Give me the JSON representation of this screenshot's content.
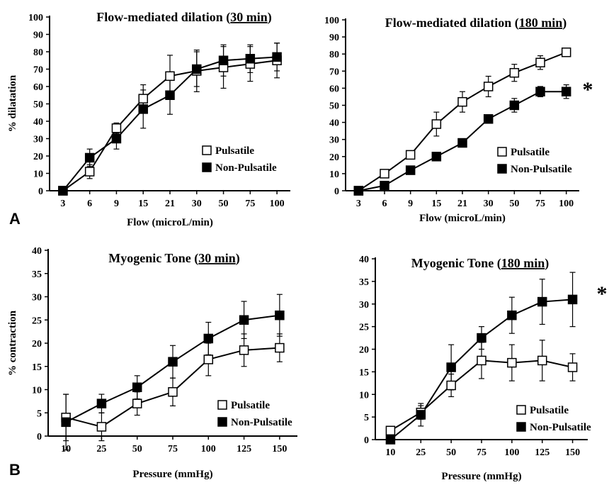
{
  "figure": {
    "panel_labels": [
      "A",
      "B"
    ]
  },
  "chart_data": [
    {
      "type": "line",
      "title_prefix": "Flow-mediated dilation ",
      "title_emph": "30 min",
      "xlabel": "Flow (microL/min)",
      "ylabel": "% dilatation",
      "categories": [
        "3",
        "6",
        "9",
        "15",
        "21",
        "30",
        "50",
        "75",
        "100"
      ],
      "ylim": [
        0,
        100
      ],
      "yticks": [
        0,
        10,
        20,
        30,
        40,
        50,
        60,
        70,
        80,
        90,
        100
      ],
      "legend_position": "lower-right",
      "asterisk": "",
      "series": [
        {
          "name": "Pulsatile",
          "marker": "open-square",
          "values": [
            0,
            11,
            36,
            53,
            66,
            69,
            71,
            73,
            75
          ],
          "errors": [
            0,
            4,
            3,
            8,
            12,
            12,
            12,
            10,
            10
          ]
        },
        {
          "name": "Non-Pulsatile",
          "marker": "filled-square",
          "values": [
            0,
            19,
            30,
            47,
            55,
            70,
            75,
            76,
            77
          ],
          "errors": [
            0,
            5,
            6,
            11,
            11,
            10,
            9,
            8,
            8
          ]
        }
      ]
    },
    {
      "type": "line",
      "title_prefix": "Flow-mediated dilation ",
      "title_emph": "180 min",
      "xlabel": "Flow (microL/min)",
      "ylabel": "",
      "categories": [
        "3",
        "6",
        "9",
        "15",
        "21",
        "30",
        "50",
        "75",
        "100"
      ],
      "ylim": [
        0,
        100
      ],
      "yticks": [
        0,
        10,
        20,
        30,
        40,
        50,
        60,
        70,
        80,
        90,
        100
      ],
      "legend_position": "lower-right",
      "asterisk": "*",
      "series": [
        {
          "name": "Pulsatile",
          "marker": "open-square",
          "values": [
            0,
            10,
            21,
            39,
            52,
            61,
            69,
            75,
            81
          ],
          "errors": [
            0,
            1,
            2,
            7,
            6,
            6,
            5,
            4,
            2
          ]
        },
        {
          "name": "Non-Pulsatile",
          "marker": "filled-square",
          "values": [
            0,
            3,
            12,
            20,
            28,
            42,
            50,
            58,
            58
          ],
          "errors": [
            0,
            1,
            1,
            1,
            1,
            2,
            4,
            3,
            4
          ]
        }
      ]
    },
    {
      "type": "line",
      "title_prefix": "Myogenic Tone ",
      "title_emph": "30 min",
      "xlabel": "Pressure (mmHg)",
      "ylabel": "% contraction",
      "categories": [
        "10",
        "25",
        "50",
        "75",
        "100",
        "125",
        "150"
      ],
      "ylim": [
        0,
        40
      ],
      "yticks": [
        0,
        5,
        10,
        15,
        20,
        25,
        30,
        35,
        40
      ],
      "legend_position": "lower-right",
      "asterisk": "",
      "series": [
        {
          "name": "Pulsatile",
          "marker": "open-square",
          "values": [
            4,
            2,
            7,
            9.5,
            16.5,
            18.5,
            19
          ],
          "errors": [
            5,
            3,
            2.5,
            3,
            3.5,
            3.5,
            3
          ]
        },
        {
          "name": "Non-Pulsatile",
          "marker": "filled-square",
          "values": [
            3,
            7,
            10.5,
            16,
            21,
            25,
            26
          ],
          "errors": [
            6,
            2,
            2.5,
            3.5,
            3.5,
            4,
            4.5
          ]
        }
      ]
    },
    {
      "type": "line",
      "title_prefix": "Myogenic Tone ",
      "title_emph": "180 min",
      "xlabel": "Pressure (mmHg)",
      "ylabel": "",
      "categories": [
        "10",
        "25",
        "50",
        "75",
        "100",
        "125",
        "150"
      ],
      "ylim": [
        0,
        40
      ],
      "yticks": [
        0,
        5,
        10,
        15,
        20,
        25,
        30,
        35,
        40
      ],
      "legend_position": "lower-right",
      "asterisk": "*",
      "series": [
        {
          "name": "Pulsatile",
          "marker": "open-square",
          "values": [
            2,
            6,
            12,
            17.5,
            17,
            17.5,
            16
          ],
          "errors": [
            0.5,
            1.5,
            2.5,
            4,
            4,
            4.5,
            3
          ]
        },
        {
          "name": "Non-Pulsatile",
          "marker": "filled-square",
          "values": [
            0,
            5.5,
            16,
            22.5,
            27.5,
            30.5,
            31
          ],
          "errors": [
            0.5,
            2.5,
            5,
            2.5,
            4,
            5,
            6
          ]
        }
      ]
    }
  ]
}
